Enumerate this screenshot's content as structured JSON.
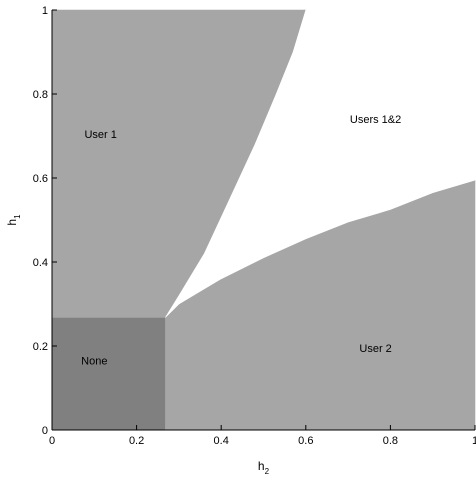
{
  "chart_data": {
    "type": "heatmap",
    "title": "",
    "xlabel": {
      "main": "h",
      "sub": "2"
    },
    "ylabel": {
      "main": "h",
      "sub": "1"
    },
    "xlim": [
      0,
      1
    ],
    "ylim": [
      0,
      1
    ],
    "xticks": [
      0,
      0.2,
      0.4,
      0.6,
      0.8,
      1
    ],
    "yticks": [
      0,
      0.2,
      0.4,
      0.6,
      0.8,
      1
    ],
    "xtick_labels": [
      "0",
      "0.2",
      "0.4",
      "0.6",
      "0.8",
      "1"
    ],
    "ytick_labels": [
      "0",
      "0.2",
      "0.4",
      "0.6",
      "0.8",
      "1"
    ],
    "grid": false,
    "regions": [
      {
        "label": "None",
        "color": "#808080",
        "boundary": [
          [
            0,
            0
          ],
          [
            0.268,
            0
          ],
          [
            0.268,
            0.268
          ],
          [
            0,
            0.268
          ]
        ],
        "label_at": [
          0.1,
          0.165
        ]
      },
      {
        "label": "User 1",
        "color": "#a6a6a6",
        "boundary": [
          [
            0,
            0.268
          ],
          [
            0.268,
            0.268
          ],
          [
            0.3,
            0.32
          ],
          [
            0.36,
            0.42
          ],
          [
            0.42,
            0.55
          ],
          [
            0.48,
            0.68
          ],
          [
            0.53,
            0.8
          ],
          [
            0.57,
            0.9
          ],
          [
            0.6,
            1
          ],
          [
            0,
            1
          ]
        ],
        "label_at": [
          0.115,
          0.705
        ]
      },
      {
        "label": "User 2",
        "color": "#a6a6a6",
        "boundary": [
          [
            0.268,
            0
          ],
          [
            1,
            0
          ],
          [
            1,
            0.595
          ],
          [
            0.9,
            0.565
          ],
          [
            0.8,
            0.525
          ],
          [
            0.7,
            0.495
          ],
          [
            0.6,
            0.455
          ],
          [
            0.5,
            0.41
          ],
          [
            0.4,
            0.36
          ],
          [
            0.3,
            0.3
          ],
          [
            0.268,
            0.268
          ]
        ],
        "label_at": [
          0.765,
          0.195
        ]
      },
      {
        "label": "Users 1&2",
        "color": "#ffffff",
        "boundary": [
          [
            0.268,
            0.268
          ],
          [
            0.3,
            0.3
          ],
          [
            0.4,
            0.36
          ],
          [
            0.5,
            0.41
          ],
          [
            0.6,
            0.455
          ],
          [
            0.7,
            0.495
          ],
          [
            0.8,
            0.525
          ],
          [
            0.9,
            0.565
          ],
          [
            1,
            0.595
          ],
          [
            1,
            1
          ],
          [
            0.6,
            1
          ],
          [
            0.57,
            0.9
          ],
          [
            0.53,
            0.8
          ],
          [
            0.48,
            0.68
          ],
          [
            0.42,
            0.55
          ],
          [
            0.36,
            0.42
          ],
          [
            0.3,
            0.32
          ]
        ],
        "label_at": [
          0.765,
          0.74
        ]
      }
    ]
  }
}
